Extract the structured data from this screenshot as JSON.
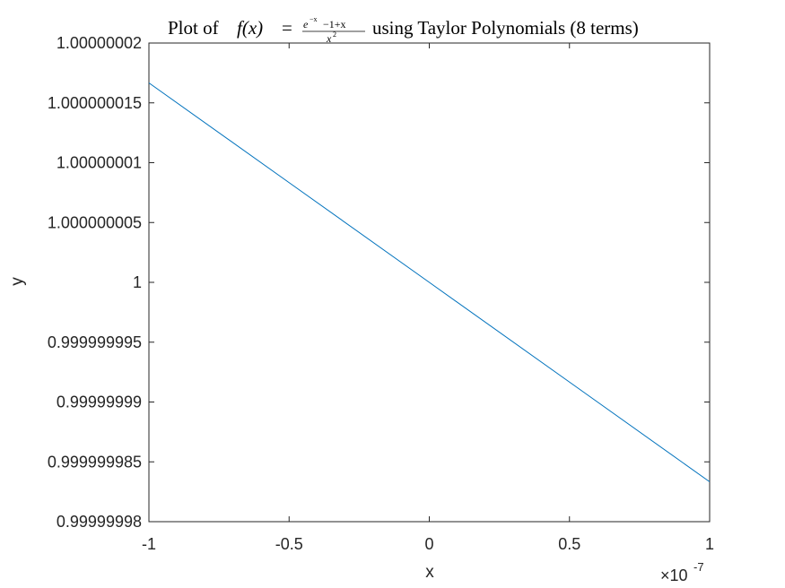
{
  "chart_data": {
    "type": "line",
    "title": {
      "prefix": "Plot of",
      "fx": "f(x)",
      "equals": "=",
      "numerator": {
        "base": "e",
        "exponent": "−x",
        "rest": "−1+x"
      },
      "denominator": {
        "base": "x",
        "exponent": "2"
      },
      "suffix": "using Taylor Polynomials (8 terms)"
    },
    "xlabel": "x",
    "ylabel": "y",
    "x_exponent": {
      "base": "×10",
      "power": "-7"
    },
    "xlim": [
      -1,
      1
    ],
    "ylim": [
      0.99999998,
      1.00000002
    ],
    "x_ticks": [
      -1,
      -0.5,
      0,
      0.5,
      1
    ],
    "x_tick_labels": [
      "-1",
      "-0.5",
      "0",
      "0.5",
      "1"
    ],
    "y_ticks": [
      0.99999998,
      0.999999985,
      0.99999999,
      0.999999995,
      1,
      1.000000005,
      1.00000001,
      1.000000015,
      1.00000002
    ],
    "y_tick_labels": [
      "0.99999998",
      "0.999999985",
      "0.99999999",
      "0.999999995",
      "1",
      "1.000000005",
      "1.00000001",
      "1.000000015",
      "1.00000002"
    ],
    "grid": false,
    "box": true,
    "series": [
      {
        "color": "#0072BD",
        "x": [
          -1,
          -0.5,
          0,
          0.5,
          1
        ],
        "y": [
          1.0000000166667,
          1.0000000083333,
          1.0,
          0.9999999916667,
          0.9999999833333
        ]
      }
    ]
  }
}
